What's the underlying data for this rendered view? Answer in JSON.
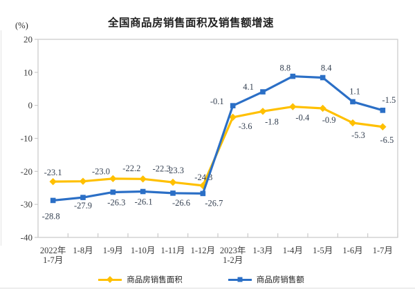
{
  "chart_data": {
    "type": "line",
    "title": "全国商品房销售面积及销售额增速",
    "unit": "(%)",
    "categories": [
      "2022年\n1-7月",
      "1-8月",
      "1-9月",
      "1-10月",
      "1-11月",
      "1-12月",
      "2023年\n1-2月",
      "1-3月",
      "1-4月",
      "1-5月",
      "1-6月",
      "1-7月"
    ],
    "ylim": [
      -40,
      20
    ],
    "yticks": [
      20,
      10,
      0,
      -10,
      -20,
      -30,
      -40
    ],
    "grid": false,
    "legend_position": "bottom",
    "axis_color": "#3a3a3a",
    "border_color": "#c9c9c9",
    "label_color": "#333f50",
    "series": [
      {
        "name": "商品房销售面积",
        "color": "#FFC000",
        "marker": "diamond",
        "values": [
          -23.1,
          -23.0,
          -22.2,
          -22.3,
          -23.3,
          -24.3,
          -3.6,
          -1.8,
          -0.4,
          -0.9,
          -5.3,
          -6.5
        ],
        "labels": [
          "-23.1",
          "-23.0",
          "-22.2",
          "-22.3",
          "-23.3",
          "-24.3",
          "-3.6",
          "-1.8",
          "-0.4",
          "-0.9",
          "-5.3",
          "-6.5"
        ],
        "label_offsets": [
          [
            0,
            -9
          ],
          [
            26,
            -10
          ],
          [
            27,
            -11
          ],
          [
            27,
            -11
          ],
          [
            3,
            -13
          ],
          [
            1,
            -8
          ],
          [
            18,
            17
          ],
          [
            13,
            19
          ],
          [
            14,
            20
          ],
          [
            9,
            21
          ],
          [
            8,
            22
          ],
          [
            6,
            23
          ]
        ]
      },
      {
        "name": "商品房销售额",
        "color": "#2B6FC6",
        "marker": "square",
        "values": [
          -28.8,
          -27.9,
          -26.3,
          -26.1,
          -26.6,
          -26.7,
          -0.1,
          4.1,
          8.8,
          8.4,
          1.1,
          -1.5
        ],
        "labels": [
          "-28.8",
          "-27.9",
          "-26.3",
          "-26.1",
          "-26.6",
          "-26.7",
          "-0.1",
          "4.1",
          "8.8",
          "8.4",
          "1.1",
          "-1.5"
        ],
        "label_offsets": [
          [
            -3,
            27
          ],
          [
            0,
            16
          ],
          [
            5,
            19
          ],
          [
            1,
            19
          ],
          [
            12,
            18
          ],
          [
            16,
            18
          ],
          [
            -13,
            -2,
            "end"
          ],
          [
            -21,
            -3
          ],
          [
            -11,
            -8
          ],
          [
            5,
            -10
          ],
          [
            3,
            -11
          ],
          [
            9,
            -11
          ]
        ]
      }
    ]
  }
}
